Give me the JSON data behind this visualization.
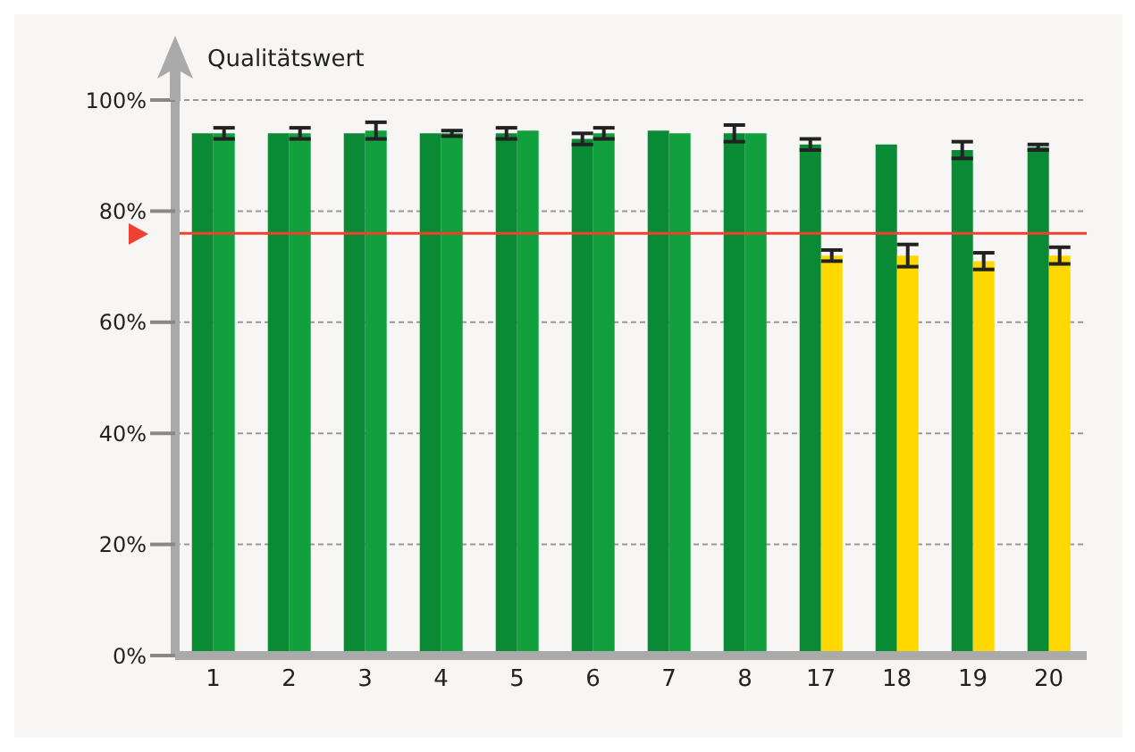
{
  "chart_data": {
    "type": "bar",
    "ylabel": "Qualitätswert",
    "categories": [
      "1",
      "2",
      "3",
      "4",
      "5",
      "6",
      "7",
      "8",
      "17",
      "18",
      "19",
      "20"
    ],
    "series": [
      {
        "color": "#0b8a36",
        "values": [
          94,
          94,
          94,
          94,
          94,
          93,
          94.5,
          94,
          92,
          92,
          91,
          91.5
        ],
        "errors": [
          null,
          null,
          null,
          null,
          1,
          1,
          null,
          1.5,
          1,
          null,
          1.5,
          0.5
        ]
      },
      {
        "color": "#12a03e",
        "colors": [
          "#12a03e",
          "#12a03e",
          "#12a03e",
          "#12a03e",
          "#12a03e",
          "#12a03e",
          "#12a03e",
          "#12a03e",
          "#ffd800",
          "#ffd800",
          "#ffd800",
          "#ffd800"
        ],
        "values": [
          94,
          94,
          94.5,
          94,
          94.5,
          94,
          94,
          94,
          72,
          72,
          71,
          72
        ],
        "errors": [
          1,
          1,
          1.5,
          0.5,
          null,
          1,
          null,
          null,
          1,
          2,
          1.5,
          1.5
        ]
      }
    ],
    "ylim": [
      0,
      100
    ],
    "yticks": [
      {
        "value": 0,
        "label": "0%"
      },
      {
        "value": 20,
        "label": "20%"
      },
      {
        "value": 40,
        "label": "40%"
      },
      {
        "value": 60,
        "label": "60%"
      },
      {
        "value": 80,
        "label": "80%"
      },
      {
        "value": 100,
        "label": "100%"
      }
    ],
    "grid": "y",
    "ref_lines": [
      {
        "axis": "y",
        "value": 76,
        "color": "#f04030"
      }
    ]
  }
}
